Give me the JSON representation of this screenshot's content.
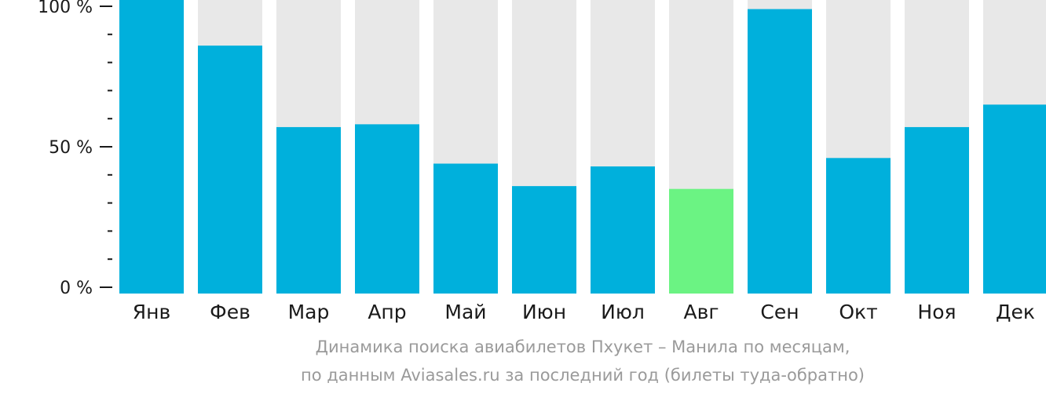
{
  "chart_data": {
    "type": "bar",
    "categories": [
      "Янв",
      "Фев",
      "Мар",
      "Апр",
      "Май",
      "Июн",
      "Июл",
      "Авг",
      "Сен",
      "Окт",
      "Ноя",
      "Дек"
    ],
    "values": [
      100,
      86,
      57,
      58,
      44,
      36,
      43,
      35,
      99,
      46,
      57,
      65
    ],
    "highlight_index": 7,
    "ylim": [
      0,
      100
    ],
    "y_ticks": [
      {
        "value": 0,
        "label": "0 %"
      },
      {
        "value": 50,
        "label": "50 %"
      },
      {
        "value": 100,
        "label": "100 %"
      }
    ],
    "minor_tick_step": 10,
    "colors": {
      "bar": "#00b0dc",
      "highlight": "#6bf383",
      "background": "#e8e8e8",
      "axis": "#1a1a1a"
    }
  },
  "caption": {
    "line1": "Динамика поиска авиабилетов Пхукет – Манила по месяцам,",
    "line2": "по данным Aviasales.ru за последний год (билеты туда-обратно)"
  }
}
